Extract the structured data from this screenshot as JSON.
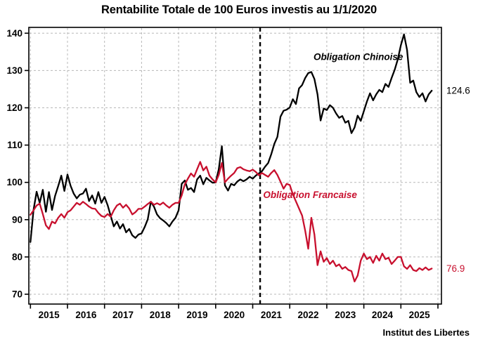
{
  "source": "Institut des Libertes",
  "chart_data": {
    "type": "line",
    "title": "Rentabilite Totale de 100 Euros investis au 1/1/2020",
    "grid": true,
    "legend_position": "none",
    "x_start_year": 2015.0,
    "x_step_years": 0.0833333,
    "x_axis": {
      "gridline_years": [
        2015,
        2016,
        2017,
        2018,
        2019,
        2020,
        2021,
        2022,
        2023,
        2024,
        2025,
        2026
      ],
      "year_labels": [
        "2015",
        "2016",
        "2017",
        "2018",
        "2019",
        "2020",
        "2021",
        "2022",
        "2023",
        "2024",
        "2025"
      ]
    },
    "y_axis": {
      "tick_labels": [
        70,
        80,
        90,
        100,
        110,
        120,
        130,
        140
      ],
      "range": [
        67.4,
        141.5
      ]
    },
    "event_line_x": 2021.2,
    "series": [
      {
        "name": "Obligation Chinoise",
        "color": "#000000",
        "end_label": "124.6",
        "values": [
          84.0,
          92.6,
          97.5,
          94.5,
          98.0,
          92.1,
          97.4,
          92.6,
          96.4,
          99.0,
          101.8,
          97.7,
          102.1,
          99.1,
          97.0,
          95.7,
          96.7,
          97.0,
          98.3,
          95.0,
          96.5,
          94.3,
          97.4,
          94.5,
          96.1,
          93.9,
          91.0,
          88.2,
          89.5,
          87.6,
          88.8,
          86.6,
          87.5,
          85.8,
          85.1,
          86.0,
          86.3,
          88.0,
          90.1,
          94.8,
          93.5,
          91.4,
          90.4,
          89.8,
          89.1,
          88.2,
          89.5,
          90.5,
          92.5,
          99.6,
          100.5,
          98.0,
          98.5,
          97.4,
          100.8,
          101.8,
          99.5,
          101.2,
          100.5,
          99.9,
          100.0,
          103.5,
          109.7,
          99.2,
          97.8,
          99.6,
          99.2,
          100.2,
          100.8,
          100.3,
          100.8,
          101.5,
          101.0,
          101.8,
          102.4,
          103.0,
          104.2,
          105.2,
          107.5,
          110.3,
          112.2,
          117.6,
          119.2,
          119.5,
          120.1,
          122.3,
          121.0,
          125.2,
          126.1,
          128.0,
          129.3,
          129.6,
          127.7,
          123.6,
          116.6,
          119.8,
          119.4,
          120.7,
          120.0,
          118.5,
          117.3,
          117.8,
          116.0,
          116.5,
          113.2,
          114.7,
          117.9,
          116.5,
          119.1,
          121.7,
          123.9,
          122.0,
          123.6,
          124.8,
          124.2,
          126.4,
          125.6,
          128.0,
          130.2,
          133.0,
          136.8,
          139.7,
          135.5,
          126.7,
          127.3,
          124.2,
          122.9,
          123.9,
          121.7,
          123.6,
          124.6
        ]
      },
      {
        "name": "Obligation Francaise",
        "color": "#C8102E",
        "end_label": "76.9",
        "values": [
          91.3,
          92.5,
          93.8,
          94.3,
          91.5,
          88.5,
          87.5,
          89.5,
          89.0,
          90.5,
          91.5,
          90.5,
          92.0,
          92.5,
          93.5,
          94.5,
          94.0,
          94.8,
          94.2,
          93.5,
          93.0,
          92.9,
          91.8,
          91.0,
          90.7,
          91.5,
          90.8,
          92.5,
          93.8,
          94.3,
          93.2,
          94.0,
          93.0,
          91.4,
          92.0,
          92.9,
          92.9,
          93.5,
          94.2,
          94.8,
          94.0,
          94.4,
          94.0,
          94.6,
          93.8,
          93.2,
          94.0,
          94.5,
          94.5,
          96.5,
          99.5,
          101.0,
          102.4,
          101.5,
          103.5,
          105.5,
          103.2,
          104.2,
          101.8,
          100.8,
          100.0,
          102.0,
          105.2,
          100.0,
          101.0,
          101.8,
          102.5,
          103.8,
          104.1,
          103.5,
          103.2,
          103.0,
          103.4,
          102.8,
          101.9,
          102.5,
          102.0,
          101.5,
          102.5,
          103.3,
          102.0,
          100.2,
          98.3,
          99.6,
          99.3,
          96.8,
          94.9,
          93.0,
          91.1,
          87.0,
          82.2,
          90.5,
          86.0,
          77.8,
          81.5,
          78.7,
          79.7,
          78.1,
          79.0,
          77.5,
          78.0,
          76.8,
          77.3,
          76.5,
          76.2,
          73.4,
          75.0,
          79.0,
          80.9,
          79.4,
          80.0,
          78.4,
          80.3,
          79.0,
          80.9,
          79.4,
          79.8,
          78.1,
          79.0,
          80.0,
          80.0,
          77.5,
          76.8,
          77.8,
          76.5,
          76.2,
          77.0,
          76.5,
          77.2,
          76.5,
          76.9
        ]
      }
    ],
    "annotations": [
      {
        "text": "Obligation Chinoise",
        "x": 2023.85,
        "y": 132.8,
        "color": "#000000"
      },
      {
        "text": "Obligation Francaise",
        "x": 2022.55,
        "y": 95.8,
        "color": "#C8102E"
      }
    ],
    "grid_color": "#b8b8b8",
    "frame_color": "#000000"
  }
}
